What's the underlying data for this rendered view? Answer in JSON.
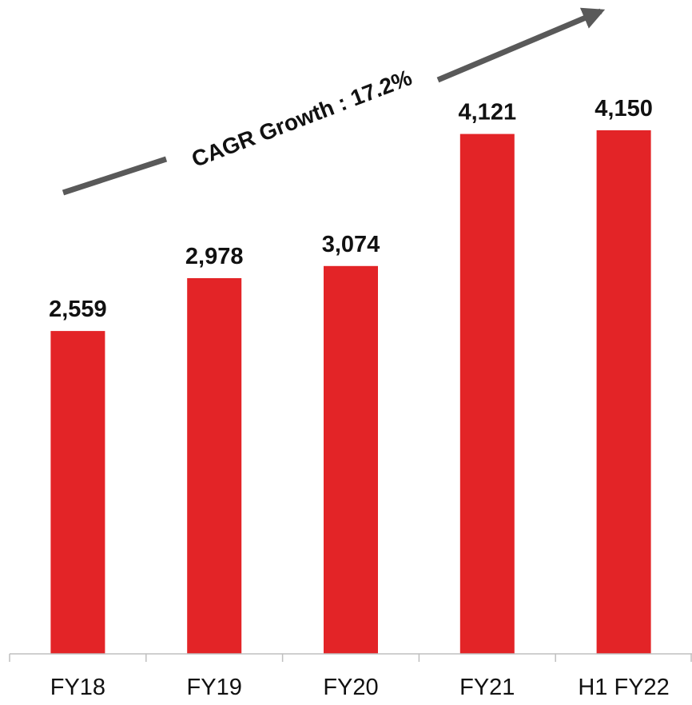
{
  "chart_data": {
    "type": "bar",
    "categories": [
      "FY18",
      "FY19",
      "FY20",
      "FY21",
      "H1 FY22"
    ],
    "values": [
      2559,
      2978,
      3074,
      4121,
      4150
    ],
    "value_labels": [
      "2,559",
      "2,978",
      "3,074",
      "4,121",
      "4,150"
    ],
    "title": "",
    "xlabel": "",
    "ylabel": "",
    "ylim": [
      0,
      5000
    ],
    "grid": false,
    "legend": "none",
    "annotation": "CAGR Growth : 17.2%"
  },
  "colors": {
    "bar": "#e32427",
    "arrow": "#595959",
    "axis": "#bfbfbf",
    "text": "#111111"
  }
}
